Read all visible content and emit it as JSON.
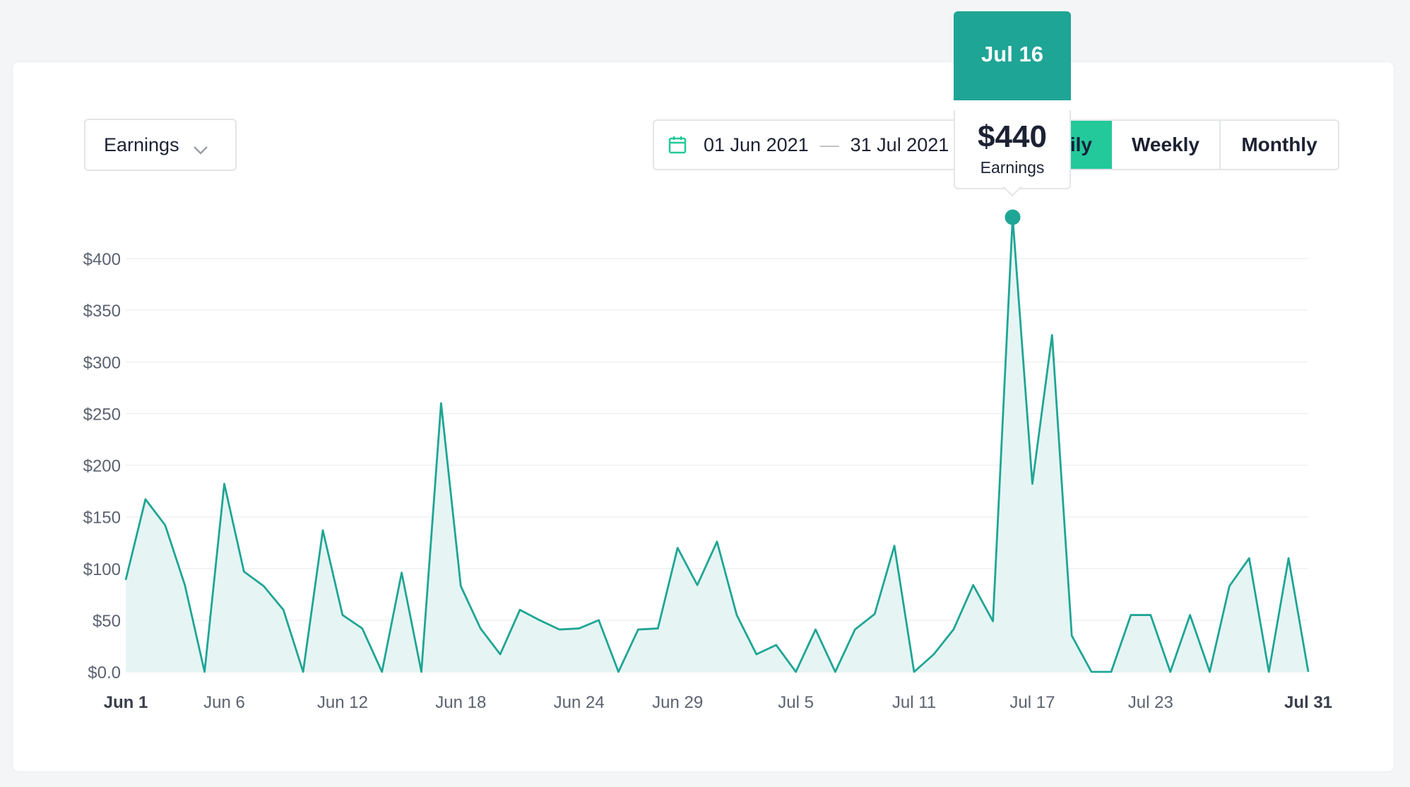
{
  "metric_selector": {
    "label": "Earnings"
  },
  "date_range": {
    "start": "01 Jun 2021",
    "end": "31 Jul 2021"
  },
  "period_tabs": [
    {
      "label": "Daily",
      "active": true
    },
    {
      "label": "Weekly",
      "active": false
    },
    {
      "label": "Monthly",
      "active": false
    }
  ],
  "tooltip": {
    "date": "Jul 16",
    "value": "$440",
    "label": "Earnings"
  },
  "colors": {
    "line": "#1fa595",
    "fill": "#e6f5f3",
    "accent": "#23c99a",
    "header": "#1fa595"
  },
  "chart_data": {
    "type": "area",
    "title": "",
    "xlabel": "",
    "ylabel": "",
    "ylim": [
      0,
      400
    ],
    "grid": true,
    "x_ticks": [
      "Jun 1",
      "Jun 6",
      "Jun 12",
      "Jun 18",
      "Jun 24",
      "Jun 29",
      "Jul 5",
      "Jul 11",
      "Jul 17",
      "Jul 23",
      "Jul 31"
    ],
    "y_ticks": [
      "$0.0",
      "$50",
      "$100",
      "$150",
      "$200",
      "$250",
      "$300",
      "$350",
      "$400"
    ],
    "y_tick_values": [
      0,
      50,
      100,
      150,
      200,
      250,
      300,
      350,
      400
    ],
    "x": [
      "Jun 1",
      "Jun 2",
      "Jun 3",
      "Jun 4",
      "Jun 5",
      "Jun 6",
      "Jun 7",
      "Jun 8",
      "Jun 9",
      "Jun 10",
      "Jun 11",
      "Jun 12",
      "Jun 13",
      "Jun 14",
      "Jun 15",
      "Jun 16",
      "Jun 17",
      "Jun 18",
      "Jun 19",
      "Jun 20",
      "Jun 21",
      "Jun 22",
      "Jun 23",
      "Jun 24",
      "Jun 25",
      "Jun 26",
      "Jun 27",
      "Jun 28",
      "Jun 29",
      "Jun 30",
      "Jul 1",
      "Jul 2",
      "Jul 3",
      "Jul 4",
      "Jul 5",
      "Jul 6",
      "Jul 7",
      "Jul 8",
      "Jul 9",
      "Jul 10",
      "Jul 11",
      "Jul 12",
      "Jul 13",
      "Jul 14",
      "Jul 15",
      "Jul 16",
      "Jul 17",
      "Jul 18",
      "Jul 19",
      "Jul 20",
      "Jul 21",
      "Jul 22",
      "Jul 23",
      "Jul 24",
      "Jul 25",
      "Jul 26",
      "Jul 27",
      "Jul 28",
      "Jul 29",
      "Jul 30",
      "Jul 31"
    ],
    "series": [
      {
        "values": [
          89,
          167,
          142,
          84,
          0,
          182,
          97,
          83,
          60,
          0,
          137,
          55,
          42,
          0,
          96,
          0,
          260,
          83,
          42,
          17,
          60,
          50,
          41,
          42,
          50,
          0,
          41,
          42,
          120,
          84,
          126,
          55,
          17,
          26,
          0,
          41,
          0,
          41,
          56,
          122,
          0,
          17,
          41,
          84,
          49,
          440,
          182,
          326,
          35,
          0,
          0,
          55,
          55,
          0,
          55,
          0,
          83,
          110,
          0,
          110,
          0
        ]
      }
    ],
    "highlight": {
      "x": "Jul 16",
      "value": 440
    }
  }
}
